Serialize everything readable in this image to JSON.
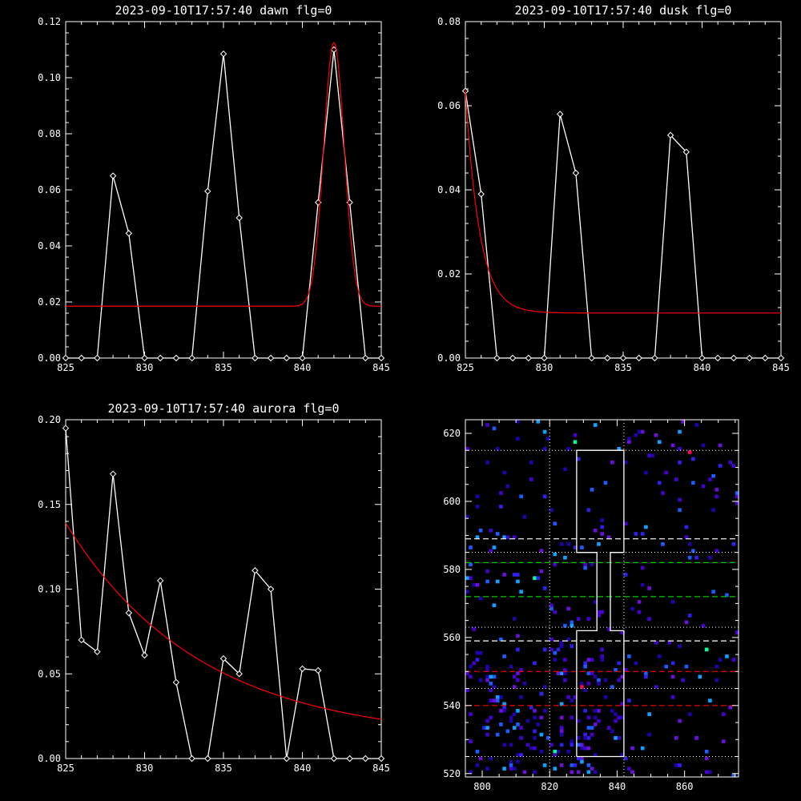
{
  "chart_data": [
    {
      "type": "line",
      "title": "2023-09-10T17:57:40 dawn flg=0",
      "xlim": [
        825,
        845
      ],
      "ylim": [
        0,
        0.12
      ],
      "xticks": [
        825,
        830,
        835,
        840,
        845
      ],
      "yticks": [
        0.0,
        0.02,
        0.04,
        0.06,
        0.08,
        0.1,
        0.12
      ],
      "ytick_labels": [
        "0.00",
        "0.02",
        "0.04",
        "0.06",
        "0.08",
        "0.10",
        "0.12"
      ],
      "series": [
        {
          "x": [
            825,
            826,
            827,
            828,
            829,
            830,
            831,
            832,
            833,
            834,
            835,
            836,
            837,
            838,
            839,
            840,
            841,
            842,
            843,
            844,
            845
          ],
          "y": [
            0,
            0,
            0,
            0.065,
            0.0445,
            0,
            0,
            0,
            0,
            0.0595,
            0.1085,
            0.05,
            0,
            0,
            0,
            0,
            0.0555,
            0.11,
            0.0555,
            0,
            0
          ],
          "color": "#ffffff",
          "markers": true
        },
        {
          "fit": "gaussian",
          "baseline": 0.0185,
          "amplitude": 0.094,
          "center": 842.0,
          "sigma": 0.65,
          "color": "#ff0000"
        }
      ]
    },
    {
      "type": "line",
      "title": "2023-09-10T17:57:40 dusk flg=0",
      "xlim": [
        825,
        845
      ],
      "ylim": [
        0,
        0.08
      ],
      "xticks": [
        825,
        830,
        835,
        840,
        845
      ],
      "yticks": [
        0.0,
        0.02,
        0.04,
        0.06,
        0.08
      ],
      "ytick_labels": [
        "0.00",
        "0.02",
        "0.04",
        "0.06",
        "0.08"
      ],
      "series": [
        {
          "x": [
            825,
            826,
            827,
            828,
            829,
            830,
            831,
            832,
            833,
            834,
            835,
            836,
            837,
            838,
            839,
            840,
            841,
            842,
            843,
            844,
            845
          ],
          "y": [
            0.0635,
            0.039,
            0,
            0,
            0,
            0,
            0.058,
            0.044,
            0,
            0,
            0,
            0,
            0,
            0.053,
            0.049,
            0,
            0,
            0,
            0,
            0,
            0
          ],
          "color": "#ffffff",
          "markers": true
        },
        {
          "fit": "exponential",
          "baseline": 0.0107,
          "amplitude": 0.053,
          "x0": 825,
          "tau": 0.9,
          "color": "#ff0000"
        }
      ]
    },
    {
      "type": "line",
      "title": "2023-09-10T17:57:40 aurora flg=0",
      "xlim": [
        825,
        845
      ],
      "ylim": [
        0,
        0.2
      ],
      "xticks": [
        825,
        830,
        835,
        840,
        845
      ],
      "yticks": [
        0.0,
        0.05,
        0.1,
        0.15,
        0.2
      ],
      "ytick_labels": [
        "0.00",
        "0.05",
        "0.10",
        "0.15",
        "0.20"
      ],
      "series": [
        {
          "x": [
            825,
            826,
            827,
            828,
            829,
            830,
            831,
            832,
            833,
            834,
            835,
            836,
            837,
            838,
            839,
            840,
            841,
            842,
            843,
            844,
            845
          ],
          "y": [
            0.195,
            0.07,
            0.063,
            0.168,
            0.086,
            0.061,
            0.105,
            0.045,
            0,
            0,
            0.059,
            0.05,
            0.111,
            0.1,
            0,
            0.053,
            0.052,
            0,
            0,
            0,
            0
          ],
          "color": "#ffffff",
          "markers": true
        },
        {
          "fit": "exponential",
          "baseline": 0.011,
          "amplitude": 0.128,
          "x0": 825,
          "tau": 8.5,
          "color": "#ff0000"
        }
      ]
    },
    {
      "type": "heatmap",
      "title": "",
      "xlim": [
        795,
        876
      ],
      "ylim": [
        519,
        624
      ],
      "xticks": [
        800,
        820,
        840,
        860
      ],
      "yticks": [
        520,
        540,
        560,
        580,
        600,
        620
      ],
      "palette": [
        "#2200aa",
        "#4400cc",
        "#6a10d8",
        "#3020ee",
        "#1a5cff",
        "#10a0ff",
        "#00ff99",
        "#ff0055"
      ],
      "dotted_vlines": [
        820,
        842
      ],
      "dotted_hlines": [
        525,
        545,
        563,
        585,
        615
      ],
      "dashed_hlines": [
        {
          "y": 589,
          "color": "#ffffff"
        },
        {
          "y": 582,
          "color": "#00cc00"
        },
        {
          "y": 572,
          "color": "#00cc00"
        },
        {
          "y": 559,
          "color": "#ffffff"
        },
        {
          "y": 550,
          "color": "#ff0000"
        },
        {
          "y": 540,
          "color": "#ff0000"
        }
      ],
      "box_outlines": [
        [
          [
            828,
            525
          ],
          [
            842,
            525
          ],
          [
            842,
            562
          ],
          [
            838,
            562
          ],
          [
            838,
            585
          ],
          [
            842,
            585
          ],
          [
            842,
            615
          ],
          [
            828,
            615
          ],
          [
            828,
            585
          ],
          [
            834,
            585
          ],
          [
            834,
            562
          ],
          [
            828,
            562
          ],
          [
            828,
            525
          ]
        ]
      ],
      "pixel_seed": 12345,
      "pixel_count": 420
    }
  ]
}
